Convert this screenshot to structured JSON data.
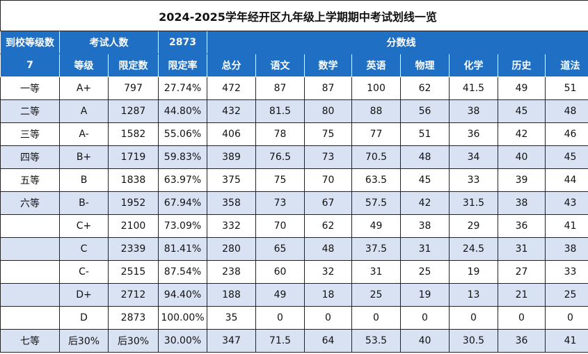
{
  "title": "2024-2025学年经开区九年级上学期期中考试划线一览",
  "header1": {
    "label_grade_levels": "到校等级数",
    "label_exam_count": "考试人数",
    "exam_count": "2873",
    "label_score_lines": "分数线"
  },
  "header2": [
    "7",
    "等级",
    "限定数",
    "限定率",
    "总分",
    "语文",
    "数学",
    "英语",
    "物理",
    "化学",
    "历史",
    "道法"
  ],
  "rows": [
    [
      "一等",
      "A+",
      "797",
      "27.74%",
      "472",
      "87",
      "87",
      "100",
      "62",
      "41.5",
      "49",
      "51"
    ],
    [
      "二等",
      "A",
      "1287",
      "44.80%",
      "432",
      "81.5",
      "80",
      "88",
      "56",
      "38",
      "45",
      "48"
    ],
    [
      "三等",
      "A-",
      "1582",
      "55.06%",
      "406",
      "78",
      "75",
      "77",
      "51",
      "36",
      "42",
      "46"
    ],
    [
      "四等",
      "B+",
      "1719",
      "59.83%",
      "389",
      "76.5",
      "73",
      "70.5",
      "48",
      "34",
      "40",
      "45"
    ],
    [
      "五等",
      "B",
      "1838",
      "63.97%",
      "375",
      "75",
      "70",
      "63.5",
      "45",
      "33",
      "39",
      "44"
    ],
    [
      "六等",
      "B-",
      "1952",
      "67.94%",
      "358",
      "73",
      "67",
      "57.5",
      "42",
      "31.5",
      "38",
      "43"
    ],
    [
      "",
      "C+",
      "2100",
      "73.09%",
      "332",
      "70",
      "62",
      "49",
      "38",
      "29",
      "36",
      "41"
    ],
    [
      "",
      "C",
      "2339",
      "81.41%",
      "280",
      "65",
      "48",
      "37.5",
      "31",
      "24.5",
      "31",
      "38"
    ],
    [
      "",
      "C-",
      "2515",
      "87.54%",
      "238",
      "60",
      "32",
      "31",
      "25",
      "19",
      "27",
      "33"
    ],
    [
      "",
      "D+",
      "2712",
      "94.40%",
      "188",
      "49",
      "18",
      "25",
      "19",
      "13",
      "21",
      "25"
    ],
    [
      "",
      "D",
      "2873",
      "100.00%",
      "35",
      "0",
      "0",
      "0",
      "0",
      "0",
      "0",
      "0"
    ],
    [
      "七等",
      "后30%",
      "后30%",
      "30.00%",
      "347",
      "71.5",
      "64",
      "53.5",
      "40",
      "30.5",
      "36",
      "41"
    ]
  ],
  "colors": {
    "header_bg": "#1f6fc4",
    "stripe": "#d9e2f3"
  }
}
